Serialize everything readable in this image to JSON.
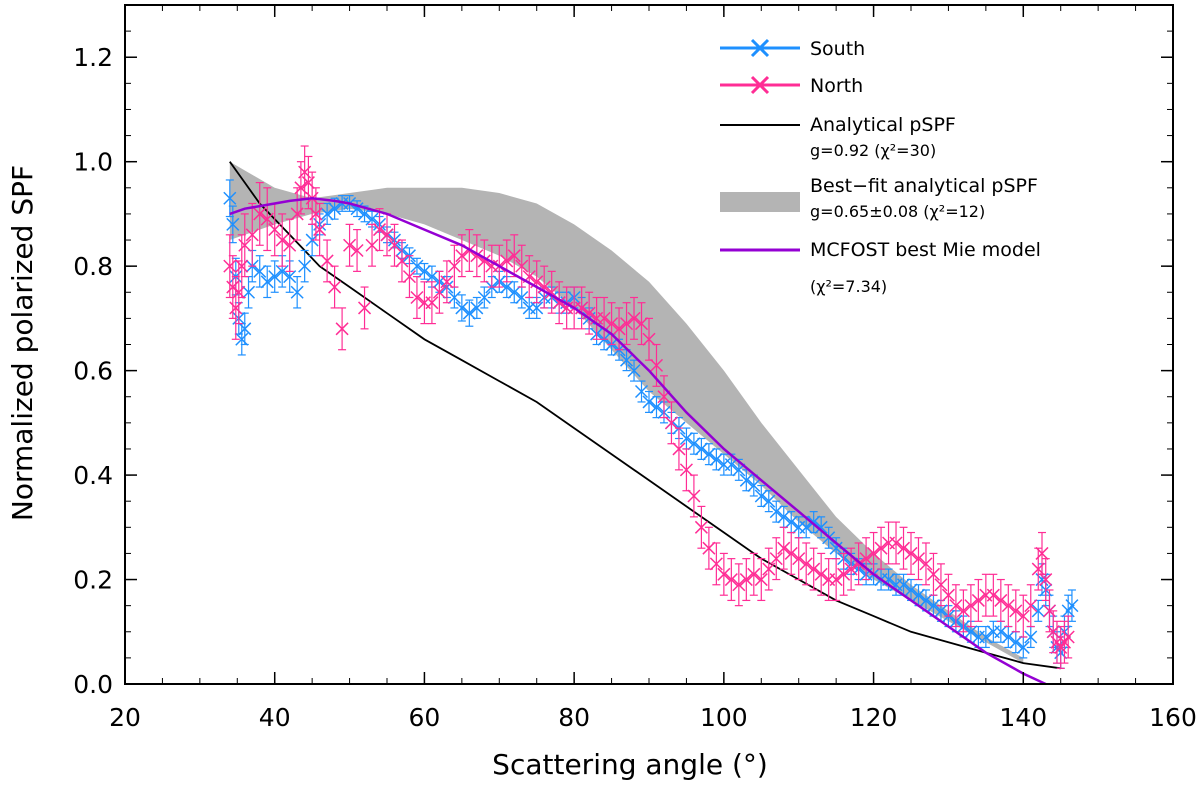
{
  "chart_data": {
    "type": "scatter",
    "xlabel": "Scattering angle (°)",
    "ylabel": "Normalized polarized SPF",
    "xlim": [
      20,
      160
    ],
    "ylim": [
      0.0,
      1.3
    ],
    "x_ticks": [
      "20",
      "40",
      "60",
      "80",
      "100",
      "120",
      "140",
      "160"
    ],
    "y_ticks": [
      "0.0",
      "0.2",
      "0.4",
      "0.6",
      "0.8",
      "1.0",
      "1.2"
    ],
    "legend_position": "top-right",
    "legend": {
      "south": "South",
      "north": "North",
      "analytical": "Analytical pSPF",
      "analytical_sub": "g=0.92 (χ²=30)",
      "bestfit": "Best−fit analytical pSPF",
      "bestfit_sub": "g=0.65±0.08 (χ²=12)",
      "mcfost": "MCFOST best Mie model",
      "mcfost_sub": "(χ²=7.34)"
    },
    "colors": {
      "south": "#1e90ff",
      "north": "#ff2d95",
      "analytical": "#000000",
      "band": "#b4b4b4",
      "mcfost": "#9400d3"
    },
    "series": [
      {
        "name": "South",
        "kind": "errorbar",
        "x": [
          34.0,
          34.4,
          34.8,
          35.2,
          35.6,
          36.0,
          36.5,
          37.0,
          38.0,
          39.0,
          40.0,
          41.0,
          42.0,
          43.0,
          44.0,
          45.0,
          46.0,
          47.0,
          48.0,
          49.0,
          50.0,
          51.0,
          52.0,
          53.0,
          54.0,
          55.0,
          56.0,
          57.0,
          58.0,
          59.0,
          60.0,
          61.0,
          62.0,
          63.0,
          64.0,
          65.0,
          66.0,
          67.0,
          68.0,
          69.0,
          70.0,
          71.0,
          72.0,
          73.0,
          74.0,
          75.0,
          76.0,
          77.0,
          78.0,
          79.0,
          80.0,
          81.0,
          82.0,
          83.0,
          84.0,
          85.0,
          86.0,
          87.0,
          88.0,
          89.0,
          90.0,
          91.0,
          92.0,
          93.0,
          94.0,
          95.0,
          96.0,
          97.0,
          98.0,
          99.0,
          100.0,
          101.0,
          102.0,
          103.0,
          104.0,
          105.0,
          106.0,
          107.0,
          108.0,
          109.0,
          110.0,
          111.0,
          112.0,
          113.0,
          114.0,
          115.0,
          116.0,
          117.0,
          118.0,
          119.0,
          120.0,
          121.0,
          122.0,
          123.0,
          124.0,
          125.0,
          126.0,
          127.0,
          128.0,
          129.0,
          130.0,
          131.0,
          132.0,
          133.0,
          134.0,
          135.0,
          136.0,
          137.0,
          138.0,
          139.0,
          140.0,
          141.0,
          142.0,
          142.5,
          143.0,
          143.5,
          144.0,
          144.5,
          145.0,
          145.5,
          146.0,
          146.5
        ],
        "y": [
          0.93,
          0.88,
          0.78,
          0.7,
          0.66,
          0.68,
          0.75,
          0.8,
          0.79,
          0.77,
          0.78,
          0.79,
          0.78,
          0.75,
          0.8,
          0.85,
          0.88,
          0.9,
          0.91,
          0.92,
          0.92,
          0.91,
          0.9,
          0.89,
          0.88,
          0.86,
          0.85,
          0.83,
          0.82,
          0.8,
          0.79,
          0.78,
          0.77,
          0.76,
          0.74,
          0.72,
          0.71,
          0.72,
          0.74,
          0.76,
          0.77,
          0.76,
          0.75,
          0.74,
          0.72,
          0.72,
          0.74,
          0.74,
          0.73,
          0.73,
          0.74,
          0.72,
          0.7,
          0.67,
          0.66,
          0.65,
          0.64,
          0.62,
          0.6,
          0.56,
          0.54,
          0.53,
          0.52,
          0.5,
          0.49,
          0.47,
          0.46,
          0.45,
          0.44,
          0.43,
          0.42,
          0.42,
          0.41,
          0.39,
          0.38,
          0.36,
          0.35,
          0.33,
          0.32,
          0.31,
          0.3,
          0.3,
          0.31,
          0.3,
          0.28,
          0.26,
          0.24,
          0.23,
          0.22,
          0.21,
          0.21,
          0.2,
          0.2,
          0.19,
          0.19,
          0.18,
          0.17,
          0.16,
          0.15,
          0.14,
          0.13,
          0.12,
          0.11,
          0.1,
          0.09,
          0.09,
          0.1,
          0.1,
          0.09,
          0.08,
          0.07,
          0.09,
          0.14,
          0.2,
          0.18,
          0.14,
          0.1,
          0.07,
          0.06,
          0.1,
          0.14,
          0.15
        ],
        "err": [
          0.035,
          0.035,
          0.035,
          0.03,
          0.03,
          0.03,
          0.03,
          0.03,
          0.03,
          0.03,
          0.03,
          0.03,
          0.03,
          0.03,
          0.03,
          0.03,
          0.02,
          0.02,
          0.02,
          0.015,
          0.015,
          0.015,
          0.015,
          0.015,
          0.015,
          0.015,
          0.015,
          0.015,
          0.015,
          0.015,
          0.015,
          0.02,
          0.02,
          0.02,
          0.02,
          0.025,
          0.025,
          0.02,
          0.02,
          0.02,
          0.02,
          0.02,
          0.02,
          0.02,
          0.02,
          0.02,
          0.02,
          0.02,
          0.02,
          0.02,
          0.02,
          0.02,
          0.02,
          0.02,
          0.02,
          0.02,
          0.02,
          0.02,
          0.02,
          0.02,
          0.02,
          0.02,
          0.02,
          0.02,
          0.02,
          0.02,
          0.02,
          0.02,
          0.02,
          0.02,
          0.02,
          0.02,
          0.02,
          0.02,
          0.02,
          0.02,
          0.02,
          0.02,
          0.02,
          0.02,
          0.02,
          0.02,
          0.02,
          0.02,
          0.02,
          0.02,
          0.02,
          0.02,
          0.02,
          0.02,
          0.02,
          0.02,
          0.02,
          0.02,
          0.02,
          0.02,
          0.02,
          0.02,
          0.02,
          0.02,
          0.02,
          0.02,
          0.02,
          0.02,
          0.02,
          0.02,
          0.02,
          0.02,
          0.02,
          0.02,
          0.02,
          0.02,
          0.02,
          0.03,
          0.03,
          0.03,
          0.03,
          0.03,
          0.03,
          0.03,
          0.03,
          0.03
        ]
      },
      {
        "name": "North",
        "kind": "errorbar",
        "x": [
          34.0,
          34.4,
          34.8,
          35.2,
          35.6,
          36.0,
          37.0,
          38.0,
          39.0,
          40.0,
          41.0,
          42.0,
          43.0,
          43.5,
          44.0,
          44.5,
          45.0,
          45.5,
          46.0,
          47.0,
          48.0,
          49.0,
          50.0,
          51.0,
          52.0,
          53.0,
          54.0,
          55.0,
          56.0,
          57.0,
          58.0,
          59.0,
          60.0,
          61.0,
          62.0,
          63.0,
          64.0,
          65.0,
          66.0,
          67.0,
          68.0,
          69.0,
          70.0,
          71.0,
          72.0,
          73.0,
          74.0,
          75.0,
          76.0,
          77.0,
          78.0,
          79.0,
          80.0,
          81.0,
          82.0,
          83.0,
          84.0,
          85.0,
          86.0,
          87.0,
          88.0,
          89.0,
          90.0,
          91.0,
          92.0,
          93.0,
          94.0,
          95.0,
          96.0,
          97.0,
          98.0,
          99.0,
          100.0,
          101.0,
          102.0,
          103.0,
          104.0,
          105.0,
          106.0,
          107.0,
          108.0,
          109.0,
          110.0,
          111.0,
          112.0,
          113.0,
          114.0,
          115.0,
          116.0,
          117.0,
          118.0,
          119.0,
          120.0,
          121.0,
          122.0,
          123.0,
          124.0,
          125.0,
          126.0,
          127.0,
          128.0,
          129.0,
          130.0,
          131.0,
          132.0,
          133.0,
          134.0,
          135.0,
          136.0,
          137.0,
          138.0,
          139.0,
          140.0,
          141.0,
          142.0,
          142.5,
          143.0,
          143.5,
          144.0,
          144.5,
          145.0,
          145.5,
          146.0
        ],
        "y": [
          0.8,
          0.76,
          0.72,
          0.75,
          0.8,
          0.84,
          0.86,
          0.9,
          0.89,
          0.87,
          0.85,
          0.84,
          0.9,
          0.95,
          0.98,
          0.96,
          0.93,
          0.9,
          0.87,
          0.81,
          0.76,
          0.68,
          0.84,
          0.83,
          0.72,
          0.84,
          0.87,
          0.86,
          0.84,
          0.81,
          0.78,
          0.74,
          0.73,
          0.73,
          0.75,
          0.77,
          0.8,
          0.82,
          0.83,
          0.82,
          0.81,
          0.8,
          0.8,
          0.81,
          0.82,
          0.8,
          0.78,
          0.77,
          0.76,
          0.75,
          0.73,
          0.72,
          0.72,
          0.72,
          0.71,
          0.7,
          0.7,
          0.69,
          0.68,
          0.69,
          0.7,
          0.69,
          0.66,
          0.61,
          0.55,
          0.5,
          0.45,
          0.41,
          0.36,
          0.3,
          0.26,
          0.23,
          0.21,
          0.2,
          0.19,
          0.2,
          0.21,
          0.2,
          0.22,
          0.24,
          0.26,
          0.25,
          0.24,
          0.23,
          0.22,
          0.21,
          0.2,
          0.2,
          0.21,
          0.22,
          0.23,
          0.24,
          0.25,
          0.26,
          0.27,
          0.27,
          0.26,
          0.25,
          0.24,
          0.23,
          0.21,
          0.19,
          0.17,
          0.15,
          0.14,
          0.15,
          0.16,
          0.17,
          0.17,
          0.16,
          0.15,
          0.14,
          0.13,
          0.15,
          0.22,
          0.25,
          0.2,
          0.14,
          0.1,
          0.08,
          0.07,
          0.08,
          0.09
        ],
        "err": [
          0.06,
          0.06,
          0.06,
          0.06,
          0.06,
          0.06,
          0.06,
          0.06,
          0.06,
          0.05,
          0.05,
          0.05,
          0.05,
          0.05,
          0.05,
          0.05,
          0.05,
          0.05,
          0.05,
          0.04,
          0.04,
          0.04,
          0.04,
          0.04,
          0.04,
          0.04,
          0.04,
          0.04,
          0.04,
          0.04,
          0.04,
          0.04,
          0.04,
          0.04,
          0.04,
          0.04,
          0.04,
          0.04,
          0.04,
          0.04,
          0.04,
          0.04,
          0.04,
          0.04,
          0.04,
          0.04,
          0.04,
          0.04,
          0.04,
          0.04,
          0.04,
          0.04,
          0.04,
          0.04,
          0.04,
          0.04,
          0.04,
          0.04,
          0.04,
          0.04,
          0.04,
          0.04,
          0.04,
          0.04,
          0.04,
          0.04,
          0.04,
          0.04,
          0.04,
          0.04,
          0.04,
          0.04,
          0.04,
          0.04,
          0.04,
          0.04,
          0.04,
          0.04,
          0.04,
          0.04,
          0.04,
          0.04,
          0.04,
          0.04,
          0.04,
          0.04,
          0.04,
          0.04,
          0.04,
          0.04,
          0.04,
          0.04,
          0.04,
          0.04,
          0.04,
          0.04,
          0.04,
          0.04,
          0.04,
          0.04,
          0.04,
          0.04,
          0.04,
          0.04,
          0.04,
          0.04,
          0.04,
          0.04,
          0.04,
          0.04,
          0.04,
          0.04,
          0.04,
          0.04,
          0.04,
          0.04,
          0.04,
          0.04,
          0.04,
          0.04,
          0.04,
          0.04,
          0.04
        ]
      },
      {
        "name": "Analytical pSPF",
        "kind": "line",
        "x": [
          34,
          36,
          38,
          40,
          42,
          44,
          46,
          48,
          50,
          55,
          60,
          65,
          70,
          75,
          80,
          85,
          90,
          95,
          100,
          105,
          110,
          115,
          120,
          125,
          130,
          135,
          140,
          145
        ],
        "y": [
          1.0,
          0.96,
          0.92,
          0.89,
          0.86,
          0.83,
          0.8,
          0.78,
          0.76,
          0.71,
          0.66,
          0.62,
          0.58,
          0.54,
          0.49,
          0.44,
          0.39,
          0.34,
          0.29,
          0.24,
          0.2,
          0.16,
          0.13,
          0.1,
          0.08,
          0.06,
          0.04,
          0.03
        ]
      },
      {
        "name": "Best−fit analytical pSPF",
        "kind": "band",
        "x": [
          34,
          40,
          45,
          50,
          55,
          60,
          65,
          70,
          75,
          80,
          85,
          90,
          95,
          100,
          105,
          110,
          115,
          120,
          125,
          130,
          135,
          140
        ],
        "lower": [
          0.85,
          0.88,
          0.9,
          0.91,
          0.9,
          0.88,
          0.85,
          0.82,
          0.78,
          0.72,
          0.64,
          0.56,
          0.5,
          0.44,
          0.38,
          0.31,
          0.25,
          0.2,
          0.16,
          0.12,
          0.08,
          0.04
        ],
        "upper": [
          1.0,
          0.95,
          0.93,
          0.94,
          0.95,
          0.95,
          0.95,
          0.94,
          0.92,
          0.88,
          0.83,
          0.77,
          0.69,
          0.6,
          0.5,
          0.41,
          0.32,
          0.25,
          0.19,
          0.14,
          0.09,
          0.05
        ]
      },
      {
        "name": "MCFOST best Mie model",
        "kind": "line",
        "x": [
          34,
          36,
          38,
          40,
          42,
          45,
          48,
          50,
          55,
          60,
          65,
          70,
          75,
          80,
          85,
          90,
          95,
          100,
          105,
          110,
          115,
          120,
          125,
          130,
          135,
          140,
          143
        ],
        "y": [
          0.9,
          0.91,
          0.915,
          0.92,
          0.925,
          0.93,
          0.925,
          0.92,
          0.9,
          0.87,
          0.84,
          0.8,
          0.76,
          0.72,
          0.67,
          0.6,
          0.52,
          0.45,
          0.39,
          0.33,
          0.27,
          0.21,
          0.16,
          0.11,
          0.06,
          0.02,
          0.0
        ]
      }
    ]
  }
}
